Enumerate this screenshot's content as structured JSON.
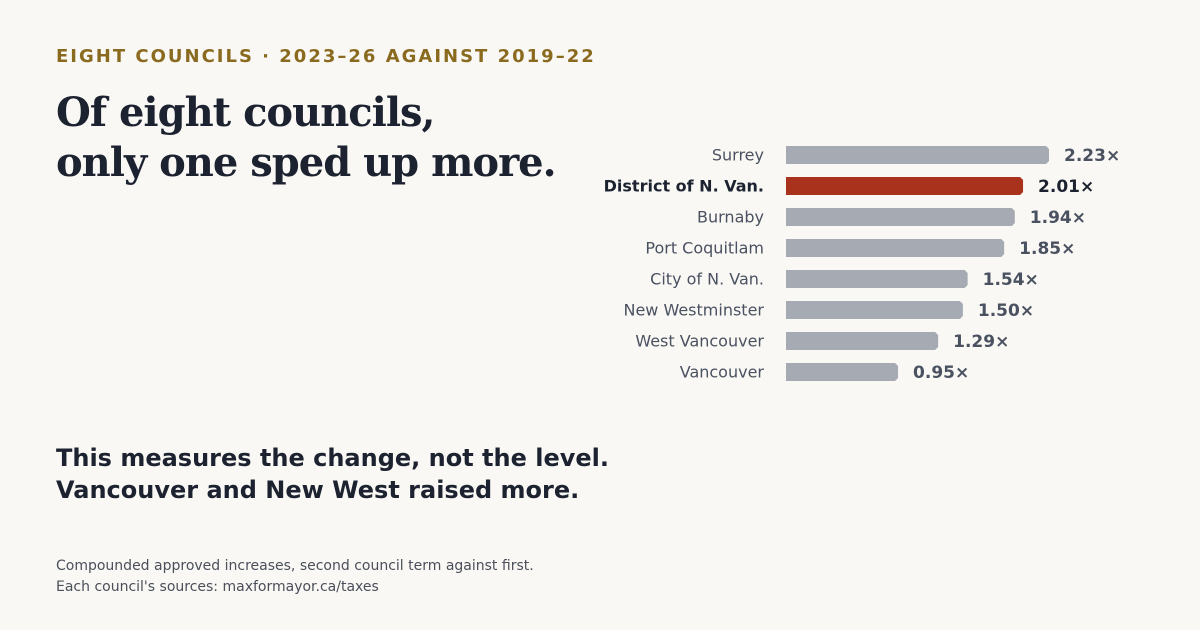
{
  "eyebrow": "EIGHT COUNCILS · 2023–26 AGAINST 2019–22",
  "headline": {
    "line1": "Of eight councils,",
    "line2": "only one sped up more."
  },
  "takeaway": {
    "line1": "This measures the change, not the level.",
    "line2": "Vancouver and New West raised more."
  },
  "footnote": {
    "line1": "Compounded approved increases, second council term against first.",
    "line2": "Each council's sources: maxformayor.ca/taxes"
  },
  "colors": {
    "bar": "#a6abb3",
    "highlight": "#a8321c"
  },
  "chart_data": {
    "type": "bar",
    "orientation": "horizontal",
    "categories": [
      "Surrey",
      "District of N. Van.",
      "Burnaby",
      "Port Coquitlam",
      "City of N. Van.",
      "New Westminster",
      "West Vancouver",
      "Vancouver"
    ],
    "values": [
      2.23,
      2.01,
      1.94,
      1.85,
      1.54,
      1.5,
      1.29,
      0.95
    ],
    "value_labels": [
      "2.23×",
      "2.01×",
      "1.94×",
      "1.85×",
      "1.54×",
      "1.50×",
      "1.29×",
      "0.95×"
    ],
    "highlight": "District of N. Van.",
    "xlim": [
      0,
      2.23
    ],
    "grid": false,
    "legend": "none"
  }
}
